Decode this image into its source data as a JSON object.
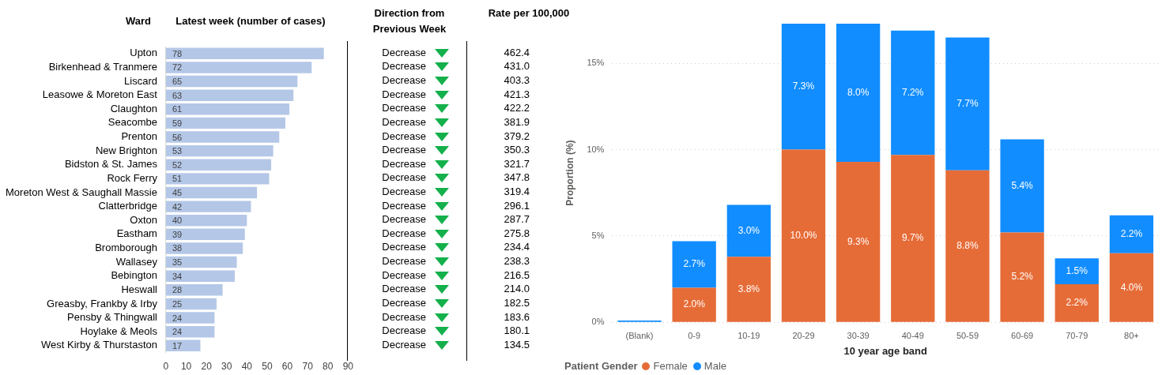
{
  "chart_data": [
    {
      "type": "bar",
      "orientation": "horizontal",
      "title": "Latest week (number of cases)",
      "ylabel": "Ward",
      "categories": [
        "Upton",
        "Birkenhead & Tranmere",
        "Liscard",
        "Leasowe & Moreton East",
        "Claughton",
        "Seacombe",
        "Prenton",
        "New Brighton",
        "Bidston & St. James",
        "Rock Ferry",
        "Moreton West & Saughall Massie",
        "Clatterbridge",
        "Oxton",
        "Eastham",
        "Bromborough",
        "Wallasey",
        "Bebington",
        "Heswall",
        "Greasby, Frankby & Irby",
        "Pensby & Thingwall",
        "Hoylake & Meols",
        "West Kirby & Thurstaston"
      ],
      "values": [
        78,
        72,
        65,
        63,
        61,
        59,
        56,
        53,
        52,
        51,
        45,
        42,
        40,
        39,
        38,
        35,
        34,
        28,
        25,
        24,
        24,
        17
      ],
      "color": "#b4c7e7",
      "xlim": [
        0,
        90
      ],
      "xticks": [
        0,
        10,
        20,
        30,
        40,
        50,
        60,
        70,
        80,
        90
      ],
      "data_labels": true
    },
    {
      "type": "other",
      "title": "Direction from Previous Week",
      "annotations": [
        "Decrease",
        "Decrease",
        "Decrease",
        "Decrease",
        "Decrease",
        "Decrease",
        "Decrease",
        "Decrease",
        "Decrease",
        "Decrease",
        "Decrease",
        "Decrease",
        "Decrease",
        "Decrease",
        "Decrease",
        "Decrease",
        "Decrease",
        "Decrease",
        "Decrease",
        "Decrease",
        "Decrease",
        "Decrease"
      ]
    },
    {
      "type": "other",
      "title": "Rate per 100,000",
      "value_labels": [
        "462.4",
        "431.0",
        "403.3",
        "421.3",
        "422.2",
        "381.9",
        "379.2",
        "350.3",
        "321.7",
        "347.8",
        "319.4",
        "296.1",
        "287.7",
        "275.8",
        "234.4",
        "238.3",
        "216.5",
        "214.0",
        "182.5",
        "183.6",
        "180.1",
        "134.5"
      ],
      "values": [
        462.4,
        431.0,
        403.3,
        421.3,
        422.2,
        381.9,
        379.2,
        350.3,
        321.7,
        347.8,
        319.4,
        296.1,
        287.7,
        275.8,
        234.4,
        238.3,
        216.5,
        214.0,
        182.5,
        183.6,
        180.1,
        134.5
      ]
    },
    {
      "type": "bar",
      "stacked": true,
      "xlabel": "10 year age band",
      "ylabel": "Proportion (%)",
      "legend": "bottom left",
      "legend_title": "Patient Gender",
      "grid": "y",
      "categories": [
        "(Blank)",
        "0-9",
        "10-19",
        "20-29",
        "30-39",
        "40-49",
        "50-59",
        "60-69",
        "70-79",
        "80+"
      ],
      "series": [
        {
          "name": "Female",
          "color": "#e66c37",
          "values": [
            null,
            2.0,
            3.8,
            10.0,
            9.3,
            9.7,
            8.8,
            5.2,
            2.2,
            4.0
          ],
          "value_labels": [
            null,
            "2.0%",
            "3.8%",
            "10.0%",
            "9.3%",
            "9.7%",
            "8.8%",
            "5.2%",
            "2.2%",
            "4.0%"
          ]
        },
        {
          "name": "Male",
          "color": "#118dff",
          "values": [
            0.1,
            2.7,
            3.0,
            7.3,
            8.0,
            7.2,
            7.7,
            5.4,
            1.5,
            2.2
          ],
          "value_labels": [
            null,
            "2.7%",
            "3.0%",
            "7.3%",
            "8.0%",
            "7.2%",
            "7.7%",
            "5.4%",
            "1.5%",
            "2.2%"
          ]
        }
      ],
      "ylim": [
        0,
        17.3
      ],
      "yticks": [
        {
          "value": 0,
          "label": "0%"
        },
        {
          "value": 5,
          "label": "5%"
        },
        {
          "value": 10,
          "label": "10%"
        },
        {
          "value": 15,
          "label": "15%"
        }
      ]
    }
  ]
}
